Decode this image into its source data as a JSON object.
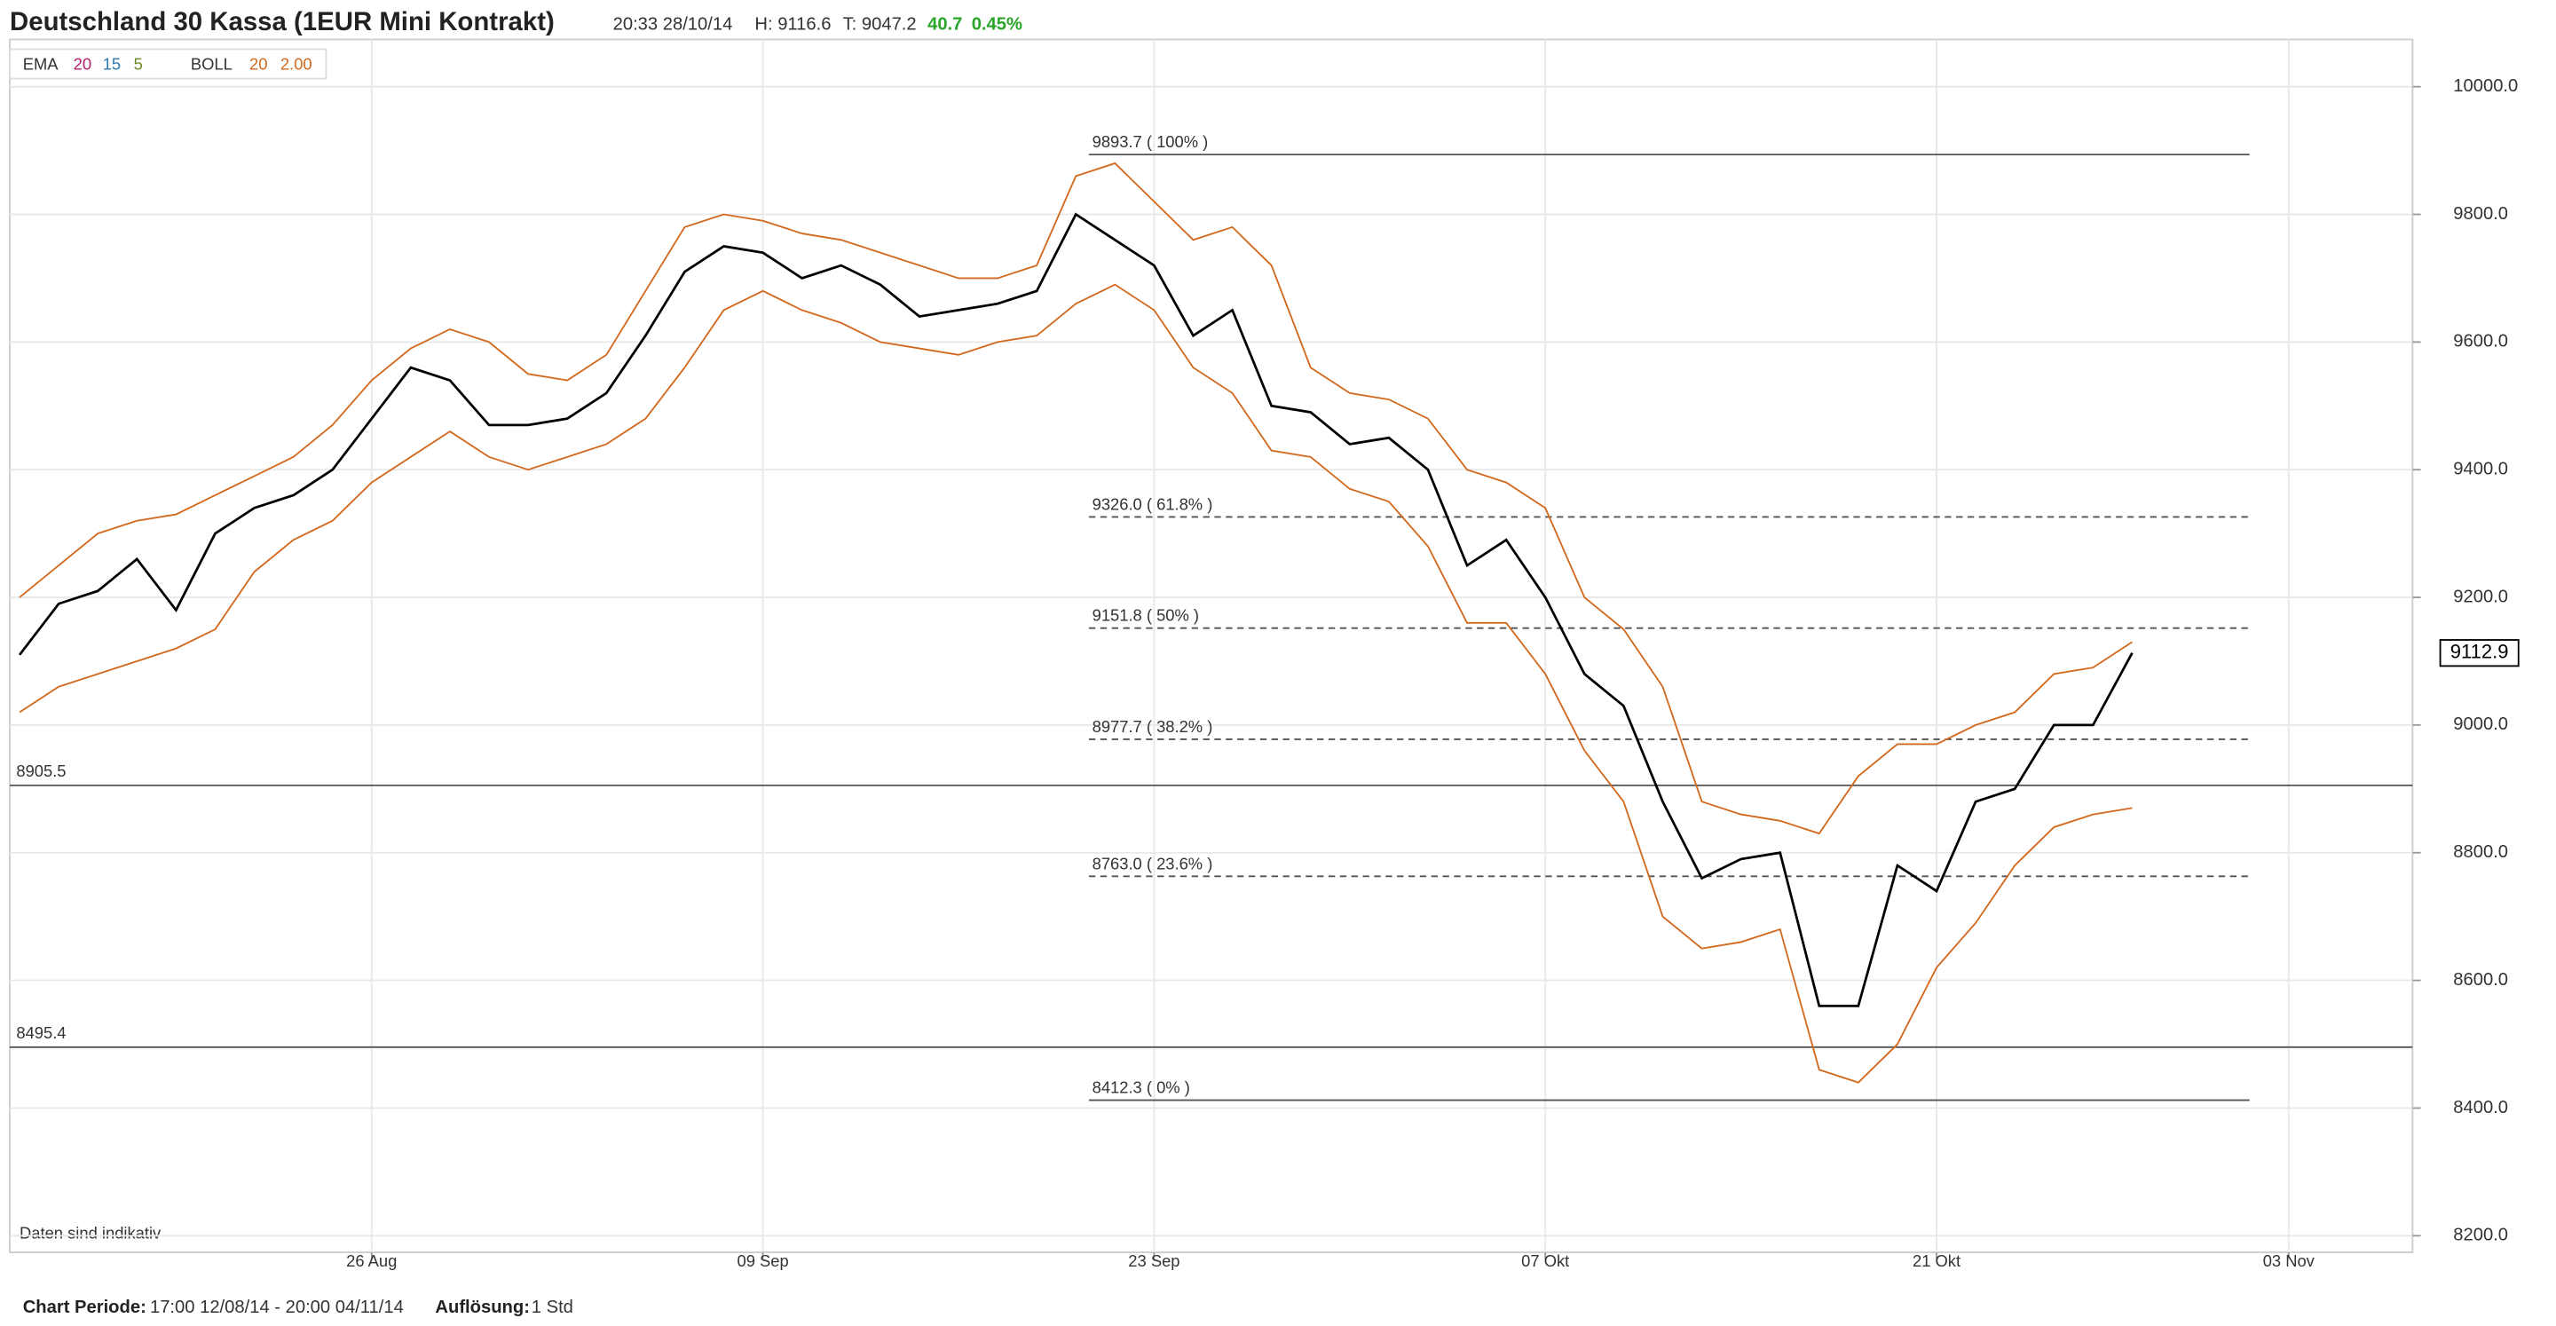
{
  "chart_data": {
    "type": "line",
    "title": "Deutschland 30 Kassa (1EUR Mini Kontrakt)",
    "timestamp": "20:33 28/10/14",
    "high": "H: 9116.6",
    "low": "T: 9047.2",
    "change": "40.7",
    "change_pct": "0.45%",
    "indicators": {
      "ema": [
        "EMA",
        "20",
        "15",
        "5"
      ],
      "boll": [
        "BOLL",
        "20",
        "2.00"
      ]
    },
    "note": "Daten sind indikativ",
    "footer": {
      "period_label": "Chart Periode:",
      "period": "17:00 12/08/14 - 20:00 04/11/14",
      "resolution_label": "Auflösung:",
      "resolution": "1 Std"
    },
    "x": [
      "2014-08-13",
      "2014-08-14",
      "2014-08-15",
      "2014-08-18",
      "2014-08-19",
      "2014-08-20",
      "2014-08-21",
      "2014-08-22",
      "2014-08-25",
      "2014-08-26",
      "2014-08-27",
      "2014-08-28",
      "2014-08-29",
      "2014-09-01",
      "2014-09-02",
      "2014-09-03",
      "2014-09-04",
      "2014-09-05",
      "2014-09-08",
      "2014-09-09",
      "2014-09-10",
      "2014-09-11",
      "2014-09-12",
      "2014-09-15",
      "2014-09-16",
      "2014-09-17",
      "2014-09-18",
      "2014-09-19",
      "2014-09-22",
      "2014-09-23",
      "2014-09-24",
      "2014-09-25",
      "2014-09-26",
      "2014-09-29",
      "2014-09-30",
      "2014-10-01",
      "2014-10-02",
      "2014-10-03",
      "2014-10-06",
      "2014-10-07",
      "2014-10-08",
      "2014-10-09",
      "2014-10-10",
      "2014-10-13",
      "2014-10-14",
      "2014-10-15",
      "2014-10-16",
      "2014-10-17",
      "2014-10-20",
      "2014-10-21",
      "2014-10-22",
      "2014-10-23",
      "2014-10-24",
      "2014-10-27",
      "2014-10-28"
    ],
    "series": [
      {
        "color": "#000000",
        "values": [
          9110,
          9190,
          9210,
          9260,
          9180,
          9300,
          9340,
          9360,
          9400,
          9480,
          9560,
          9540,
          9470,
          9470,
          9480,
          9520,
          9610,
          9710,
          9750,
          9740,
          9700,
          9720,
          9690,
          9640,
          9650,
          9660,
          9680,
          9800,
          9760,
          9720,
          9610,
          9650,
          9500,
          9490,
          9440,
          9450,
          9400,
          9250,
          9290,
          9200,
          9080,
          9030,
          8880,
          8760,
          8790,
          8800,
          8560,
          8560,
          8780,
          8740,
          8880,
          8900,
          9000,
          9000,
          9112.9
        ]
      },
      {
        "color": "#d2691e",
        "values": [
          9200,
          9250,
          9300,
          9320,
          9330,
          9360,
          9390,
          9420,
          9470,
          9540,
          9590,
          9620,
          9600,
          9550,
          9540,
          9580,
          9680,
          9780,
          9800,
          9790,
          9770,
          9760,
          9740,
          9720,
          9700,
          9700,
          9720,
          9860,
          9880,
          9820,
          9760,
          9780,
          9720,
          9560,
          9520,
          9510,
          9480,
          9400,
          9380,
          9340,
          9200,
          9150,
          9060,
          8880,
          8860,
          8850,
          8830,
          8920,
          8970,
          8970,
          9000,
          9020,
          9080,
          9090,
          9130
        ]
      },
      {
        "color": "#d2691e",
        "values": [
          9020,
          9060,
          9080,
          9100,
          9120,
          9150,
          9240,
          9290,
          9320,
          9380,
          9420,
          9460,
          9420,
          9400,
          9420,
          9440,
          9480,
          9560,
          9650,
          9680,
          9650,
          9630,
          9600,
          9590,
          9580,
          9600,
          9610,
          9660,
          9690,
          9650,
          9560,
          9520,
          9430,
          9420,
          9370,
          9350,
          9280,
          9160,
          9160,
          9080,
          8960,
          8880,
          8700,
          8650,
          8660,
          8680,
          8460,
          8440,
          8500,
          8620,
          8690,
          8780,
          8840,
          8860,
          8870
        ]
      }
    ],
    "fib_levels": [
      {
        "value": 9893.7,
        "label": "9893.7 ( 100% )"
      },
      {
        "value": 9326.0,
        "label": "9326.0 ( 61.8% )"
      },
      {
        "value": 9151.8,
        "label": "9151.8 ( 50% )"
      },
      {
        "value": 8977.7,
        "label": "8977.7 ( 38.2% )"
      },
      {
        "value": 8763.0,
        "label": "8763.0 ( 23.6% )"
      },
      {
        "value": 8412.3,
        "label": "8412.3 ( 0% )"
      }
    ],
    "levels": [
      {
        "value": 8905.5,
        "label": "8905.5"
      },
      {
        "value": 8495.4,
        "label": "8495.4"
      }
    ],
    "xlim": [
      "2014-08-12",
      "2014-11-04"
    ],
    "xticks": [
      {
        "value": "2014-08-26",
        "label": "26 Aug"
      },
      {
        "value": "2014-09-09",
        "label": "09 Sep"
      },
      {
        "value": "2014-09-23",
        "label": "23 Sep"
      },
      {
        "value": "2014-10-07",
        "label": "07 Okt"
      },
      {
        "value": "2014-10-21",
        "label": "21 Okt"
      },
      {
        "value": "2014-11-03",
        "label": "03 Nov"
      }
    ],
    "ylim": [
      8174,
      10074
    ],
    "yticks": [
      {
        "value": 8200,
        "label": "8200.0"
      },
      {
        "value": 8400,
        "label": "8400.0"
      },
      {
        "value": 8600,
        "label": "8600.0"
      },
      {
        "value": 8800,
        "label": "8800.0"
      },
      {
        "value": 9000,
        "label": "9000.0"
      },
      {
        "value": 9200,
        "label": "9200.0"
      },
      {
        "value": 9400,
        "label": "9400.0"
      },
      {
        "value": 9600,
        "label": "9600.0"
      },
      {
        "value": 9800,
        "label": "9800.0"
      },
      {
        "value": 10000,
        "label": "10000.0"
      }
    ],
    "grid": true
  }
}
